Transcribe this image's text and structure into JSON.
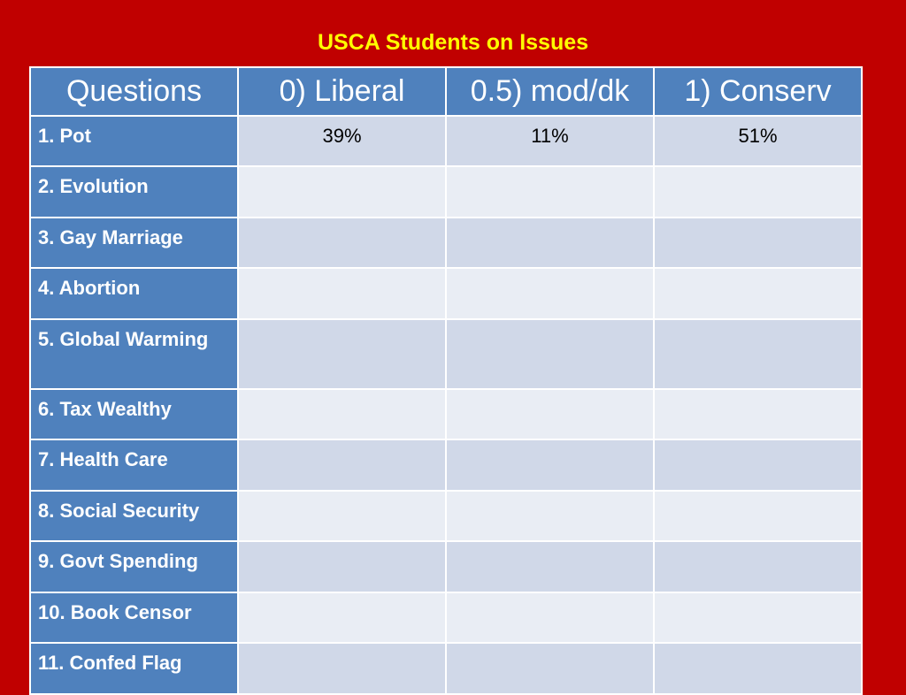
{
  "slide": {
    "title": "USCA Students on Issues"
  },
  "table": {
    "headers": [
      "Questions",
      "0) Liberal",
      "0.5) mod/dk",
      "1) Conserv"
    ],
    "rows": [
      {
        "question": "1. Pot",
        "liberal": "39%",
        "mod_dk": "11%",
        "conserv": "51%"
      },
      {
        "question": "2. Evolution",
        "liberal": "",
        "mod_dk": "",
        "conserv": ""
      },
      {
        "question": "3. Gay Marriage",
        "liberal": "",
        "mod_dk": "",
        "conserv": ""
      },
      {
        "question": "4. Abortion",
        "liberal": "",
        "mod_dk": "",
        "conserv": ""
      },
      {
        "question": "5. Global Warming",
        "liberal": "",
        "mod_dk": "",
        "conserv": ""
      },
      {
        "question": "6. Tax Wealthy",
        "liberal": "",
        "mod_dk": "",
        "conserv": ""
      },
      {
        "question": "7. Health Care",
        "liberal": "",
        "mod_dk": "",
        "conserv": ""
      },
      {
        "question": "8. Social Security",
        "liberal": "",
        "mod_dk": "",
        "conserv": ""
      },
      {
        "question": "9. Govt Spending",
        "liberal": "",
        "mod_dk": "",
        "conserv": ""
      },
      {
        "question": "10. Book Censor",
        "liberal": "",
        "mod_dk": "",
        "conserv": ""
      },
      {
        "question": "11. Confed Flag",
        "liberal": "",
        "mod_dk": "",
        "conserv": ""
      }
    ]
  },
  "colors": {
    "background": "#c00000",
    "title": "#ffff00",
    "header": "#4f81bd",
    "row_odd": "#d0d8e8",
    "row_even": "#e9edf4"
  }
}
